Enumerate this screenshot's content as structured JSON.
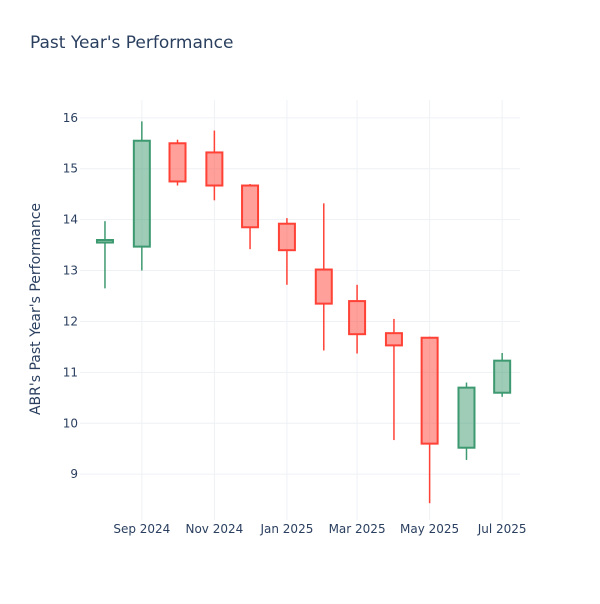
{
  "chart_data": {
    "type": "candlestick",
    "title": "Past Year's Performance",
    "xlabel": "",
    "ylabel": "ABR's Past Year's Performance",
    "ylim": [
      8.1,
      16.35
    ],
    "y_ticks": [
      9,
      10,
      11,
      12,
      13,
      14,
      15,
      16
    ],
    "x_ticks": [
      {
        "date": "2024-09-01",
        "label": "Sep 2024"
      },
      {
        "date": "2024-11-01",
        "label": "Nov 2024"
      },
      {
        "date": "2025-01-01",
        "label": "Jan 2025"
      },
      {
        "date": "2025-03-01",
        "label": "Mar 2025"
      },
      {
        "date": "2025-05-01",
        "label": "May 2025"
      },
      {
        "date": "2025-07-01",
        "label": "Jul 2025"
      }
    ],
    "xlim": [
      "2024-07-11",
      "2025-07-16"
    ],
    "grid": true,
    "increasing_color": "#3d9970",
    "decreasing_color": "#ff4136",
    "candles": [
      {
        "date": "2024-08-01",
        "open": 13.55,
        "high": 13.97,
        "low": 12.65,
        "close": 13.6
      },
      {
        "date": "2024-09-01",
        "open": 13.47,
        "high": 15.93,
        "low": 13.0,
        "close": 15.55
      },
      {
        "date": "2024-10-01",
        "open": 15.5,
        "high": 15.57,
        "low": 14.67,
        "close": 14.75
      },
      {
        "date": "2024-11-01",
        "open": 15.32,
        "high": 15.75,
        "low": 14.38,
        "close": 14.67
      },
      {
        "date": "2024-12-01",
        "open": 14.67,
        "high": 14.7,
        "low": 13.42,
        "close": 13.85
      },
      {
        "date": "2025-01-01",
        "open": 13.92,
        "high": 14.03,
        "low": 12.72,
        "close": 13.4
      },
      {
        "date": "2025-02-01",
        "open": 13.02,
        "high": 14.32,
        "low": 11.43,
        "close": 12.35
      },
      {
        "date": "2025-03-01",
        "open": 12.4,
        "high": 12.72,
        "low": 11.37,
        "close": 11.75
      },
      {
        "date": "2025-04-01",
        "open": 11.77,
        "high": 12.05,
        "low": 9.67,
        "close": 11.53
      },
      {
        "date": "2025-05-01",
        "open": 11.68,
        "high": 11.7,
        "low": 8.43,
        "close": 9.6
      },
      {
        "date": "2025-06-01",
        "open": 9.52,
        "high": 10.8,
        "low": 9.28,
        "close": 10.7
      },
      {
        "date": "2025-07-01",
        "open": 10.6,
        "high": 11.38,
        "low": 10.52,
        "close": 11.23
      }
    ]
  }
}
